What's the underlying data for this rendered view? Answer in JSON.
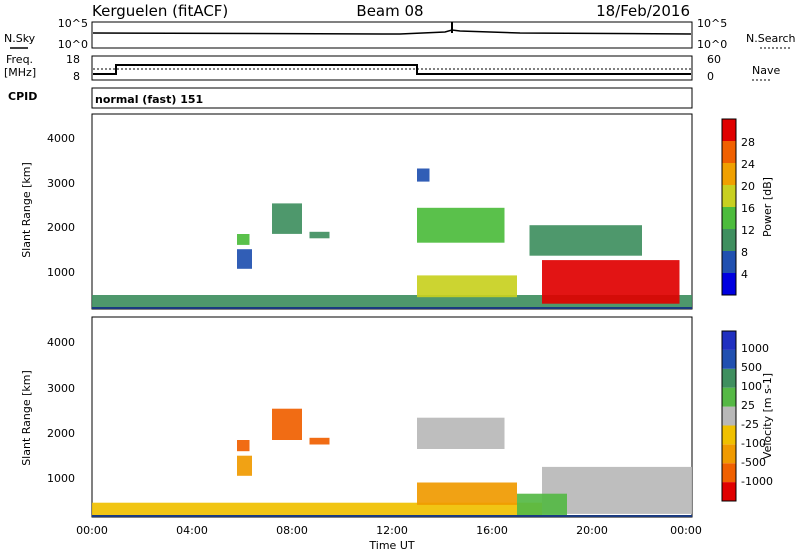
{
  "header": {
    "station": "Kerguelen (fitACF)",
    "beam": "Beam 08",
    "date": "18/Feb/2016"
  },
  "top_panels": {
    "noise_left_label": "N.Sky",
    "noise_right_label": "N.Search",
    "noise_ticks_left": [
      "10^5",
      "10^0"
    ],
    "noise_ticks_right": [
      "10^5",
      "10^0"
    ],
    "freq_label_1": "Freq.",
    "freq_label_2": "[MHz]",
    "freq_ticks": [
      "18",
      "8"
    ],
    "nave_label": "Nave",
    "nave_ticks": [
      "60",
      "0"
    ],
    "cpid_label": "CPID",
    "cpid_text": "normal (fast) 151"
  },
  "colors": {
    "power": [
      "#0000e0",
      "#2050b0",
      "#3f8f5f",
      "#4cbc3c",
      "#c8d020",
      "#f0a000",
      "#f06000",
      "#e00000"
    ],
    "velocity": [
      "#e00000",
      "#f06000",
      "#f09a00",
      "#f0c000",
      "#b8b8b8",
      "#55b845",
      "#3f8f5f",
      "#2050b0",
      "#2030c0"
    ]
  },
  "chart_data": [
    {
      "type": "heatmap",
      "quantity": "power",
      "ylabel": "Slant Range [km]",
      "yticks": [
        "1000",
        "2000",
        "3000",
        "4000"
      ],
      "ylim": [
        180,
        4650
      ],
      "xlim": [
        0,
        24
      ],
      "colorbar": {
        "label": "Power [dB]",
        "ticks": [
          "4",
          "8",
          "12",
          "16",
          "20",
          "24",
          "28"
        ]
      },
      "regions": [
        {
          "t": [
            0.0,
            24.0
          ],
          "r": [
            200,
            500
          ],
          "level": 2
        },
        {
          "t": [
            5.8,
            6.4
          ],
          "r": [
            1100,
            1550
          ],
          "level": 1
        },
        {
          "t": [
            5.8,
            6.3
          ],
          "r": [
            1650,
            1900
          ],
          "level": 3
        },
        {
          "t": [
            7.2,
            8.4
          ],
          "r": [
            1900,
            2600
          ],
          "level": 2
        },
        {
          "t": [
            8.7,
            9.5
          ],
          "r": [
            1800,
            1950
          ],
          "level": 2
        },
        {
          "t": [
            13.0,
            16.5
          ],
          "r": [
            1700,
            2500
          ],
          "level": 3
        },
        {
          "t": [
            13.0,
            13.5
          ],
          "r": [
            3100,
            3400
          ],
          "level": 1
        },
        {
          "t": [
            13.0,
            17.0
          ],
          "r": [
            450,
            950
          ],
          "level": 4
        },
        {
          "t": [
            18.0,
            23.5
          ],
          "r": [
            300,
            1300
          ],
          "level": 7
        },
        {
          "t": [
            17.5,
            22.0
          ],
          "r": [
            1400,
            2100
          ],
          "level": 2
        }
      ]
    },
    {
      "type": "heatmap",
      "quantity": "velocity",
      "xlabel": "Time UT",
      "ylabel": "Slant Range [km]",
      "yticks": [
        "1000",
        "2000",
        "3000",
        "4000"
      ],
      "ylim": [
        180,
        4650
      ],
      "xlim": [
        0,
        24
      ],
      "xticks": [
        "00:00",
        "04:00",
        "08:00",
        "12:00",
        "16:00",
        "20:00",
        "00:00"
      ],
      "colorbar": {
        "label": "Velocity [m s-1]",
        "ticks": [
          "-1000",
          "-500",
          "-100",
          "-25",
          "25",
          "100",
          "500",
          "1000"
        ]
      },
      "regions": [
        {
          "t": [
            0.0,
            18.0
          ],
          "r": [
            200,
            500
          ],
          "level": 3
        },
        {
          "t": [
            5.8,
            6.4
          ],
          "r": [
            1100,
            1550
          ],
          "level": 2
        },
        {
          "t": [
            5.8,
            6.3
          ],
          "r": [
            1650,
            1900
          ],
          "level": 1
        },
        {
          "t": [
            7.2,
            8.4
          ],
          "r": [
            1900,
            2600
          ],
          "level": 1
        },
        {
          "t": [
            8.7,
            9.5
          ],
          "r": [
            1800,
            1950
          ],
          "level": 1
        },
        {
          "t": [
            13.0,
            16.5
          ],
          "r": [
            1700,
            2400
          ],
          "level": 4
        },
        {
          "t": [
            13.0,
            17.0
          ],
          "r": [
            450,
            950
          ],
          "level": 2
        },
        {
          "t": [
            18.0,
            24.0
          ],
          "r": [
            250,
            1300
          ],
          "level": 4
        },
        {
          "t": [
            17.0,
            19.0
          ],
          "r": [
            200,
            700
          ],
          "level": 5
        }
      ]
    }
  ]
}
